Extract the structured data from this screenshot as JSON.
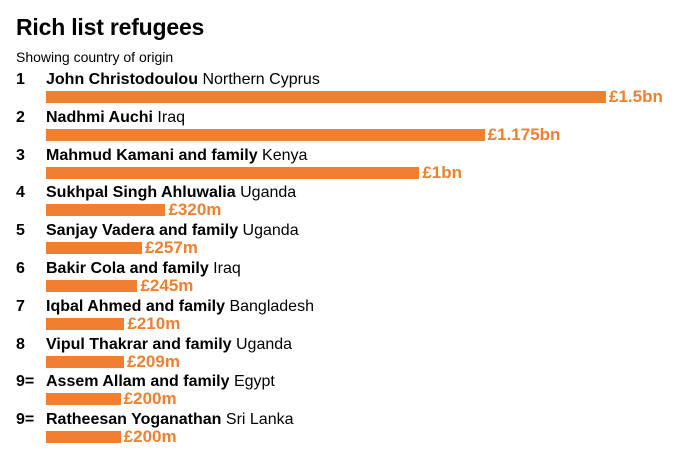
{
  "chart_data": {
    "type": "bar",
    "orientation": "horizontal",
    "title": "Rich list refugees",
    "subtitle": "Showing country of origin",
    "grid": false,
    "unit": "£ billions",
    "xlim": [
      0,
      1.5
    ],
    "rows": [
      {
        "rank": "1",
        "name": "John Christodoulou",
        "origin": "Northern Cyprus",
        "value": 1.5,
        "value_label": "£1.5bn"
      },
      {
        "rank": "2",
        "name": "Nadhmi Auchi",
        "origin": "Iraq",
        "value": 1.175,
        "value_label": "£1.175bn"
      },
      {
        "rank": "3",
        "name": "Mahmud Kamani and family",
        "origin": "Kenya",
        "value": 1.0,
        "value_label": "£1bn"
      },
      {
        "rank": "4",
        "name": "Sukhpal Singh Ahluwalia",
        "origin": "Uganda",
        "value": 0.32,
        "value_label": "£320m"
      },
      {
        "rank": "5",
        "name": "Sanjay Vadera and family",
        "origin": "Uganda",
        "value": 0.257,
        "value_label": "£257m"
      },
      {
        "rank": "6",
        "name": "Bakir Cola and family",
        "origin": "Iraq",
        "value": 0.245,
        "value_label": "£245m"
      },
      {
        "rank": "7",
        "name": "Iqbal Ahmed and family",
        "origin": "Bangladesh",
        "value": 0.21,
        "value_label": "£210m"
      },
      {
        "rank": "8",
        "name": "Vipul Thakrar and family",
        "origin": "Uganda",
        "value": 0.209,
        "value_label": "£209m"
      },
      {
        "rank": "9=",
        "name": "Assem Allam and family",
        "origin": "Egypt",
        "value": 0.2,
        "value_label": "£200m"
      },
      {
        "rank": "9=",
        "name": "Ratheesan Yoganathan",
        "origin": "Sri Lanka",
        "value": 0.2,
        "value_label": "£200m"
      }
    ],
    "colors": {
      "bar": "#f07f30",
      "value_label": "#f07f30",
      "text": "#000000"
    }
  }
}
